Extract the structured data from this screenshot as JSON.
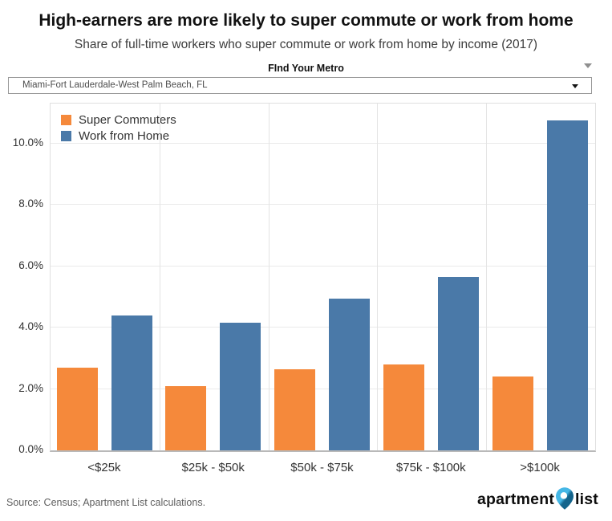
{
  "chart_data": {
    "type": "bar",
    "title": "High-earners are more likely to super commute or work from home",
    "subtitle": "Share of full-time workers who super commute or work from home by income (2017)",
    "categories": [
      "<$25k",
      "$25k - $50k",
      "$50k - $75k",
      "$75k - $100k",
      ">$100k"
    ],
    "series": [
      {
        "name": "Super Commuters",
        "color": "#f5893b",
        "values": [
          2.7,
          2.1,
          2.65,
          2.8,
          2.4
        ]
      },
      {
        "name": "Work from Home",
        "color": "#4a79a8",
        "values": [
          4.4,
          4.15,
          4.95,
          5.65,
          10.75
        ]
      }
    ],
    "unit": "%",
    "xlabel": "",
    "ylabel": "",
    "y_ticks": [
      {
        "value": 0,
        "label": "0.0%"
      },
      {
        "value": 2,
        "label": "2.0%"
      },
      {
        "value": 4,
        "label": "4.0%"
      },
      {
        "value": 6,
        "label": "6.0%"
      },
      {
        "value": 8,
        "label": "8.0%"
      },
      {
        "value": 10,
        "label": "10.0%"
      }
    ],
    "ylim": [
      0,
      11.3
    ],
    "grid": true,
    "legend_position": "top-left"
  },
  "filter": {
    "label": "FInd Your Metro",
    "selected_metro": "Miami-Fort Lauderdale-West Palm Beach, FL"
  },
  "footer": {
    "source": "Source: Census; Apartment List calculations.",
    "logo": {
      "left": "apartment",
      "right": "list",
      "pin_light": "#45b7e6",
      "pin_dark": "#14648c"
    }
  }
}
